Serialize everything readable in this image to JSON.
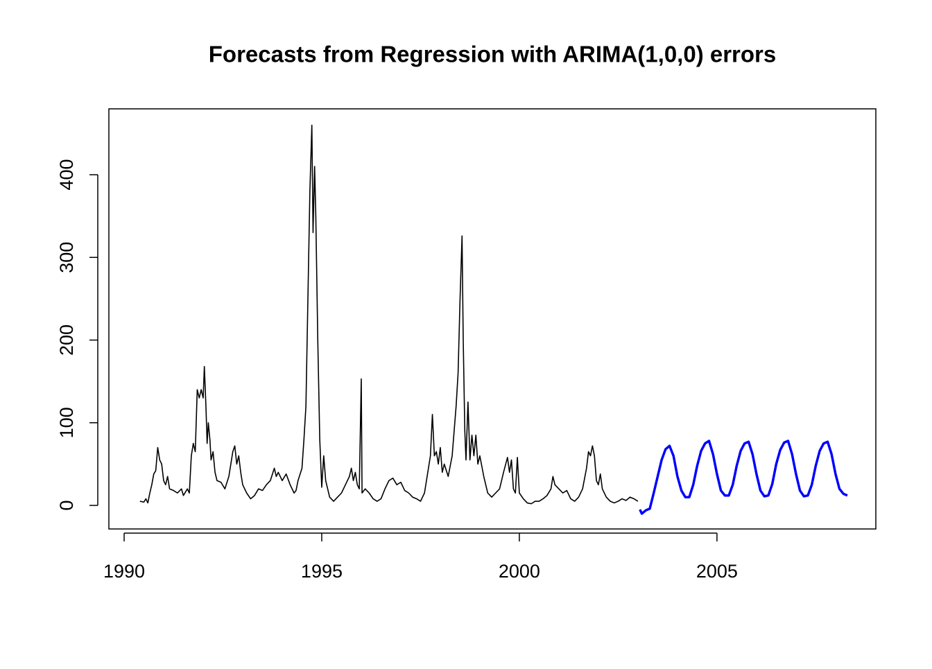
{
  "chart_data": {
    "type": "line",
    "title": "Forecasts from Regression with ARIMA(1,0,0) errors",
    "xlim": [
      1989.614,
      2009.02
    ],
    "xticks": [
      1990,
      1995,
      2000,
      2005
    ],
    "ylim": [
      -28.5,
      479.7
    ],
    "yticks": [
      0,
      100,
      200,
      300,
      400
    ],
    "series": [
      {
        "color": "#000000",
        "x": [
          1990.4,
          1990.5,
          1990.55,
          1990.6,
          1990.65,
          1990.7,
          1990.75,
          1990.8,
          1990.85,
          1990.9,
          1990.95,
          1991.0,
          1991.05,
          1991.1,
          1991.15,
          1991.25,
          1991.35,
          1991.45,
          1991.5,
          1991.6,
          1991.65,
          1991.7,
          1991.75,
          1991.8,
          1991.85,
          1991.9,
          1991.95,
          1992.0,
          1992.03,
          1992.07,
          1992.1,
          1992.13,
          1992.17,
          1992.2,
          1992.25,
          1992.3,
          1992.35,
          1992.45,
          1992.55,
          1992.65,
          1992.75,
          1992.8,
          1992.85,
          1992.9,
          1992.95,
          1993.0,
          1993.1,
          1993.2,
          1993.3,
          1993.4,
          1993.5,
          1993.6,
          1993.7,
          1993.8,
          1993.85,
          1993.9,
          1994.0,
          1994.1,
          1994.2,
          1994.3,
          1994.35,
          1994.4,
          1994.5,
          1994.55,
          1994.6,
          1994.65,
          1994.7,
          1994.75,
          1994.78,
          1994.82,
          1994.85,
          1994.9,
          1994.95,
          1995.0,
          1995.05,
          1995.1,
          1995.2,
          1995.3,
          1995.4,
          1995.5,
          1995.6,
          1995.7,
          1995.75,
          1995.8,
          1995.85,
          1995.9,
          1995.95,
          1996.0,
          1996.02,
          1996.1,
          1996.2,
          1996.3,
          1996.4,
          1996.5,
          1996.6,
          1996.7,
          1996.8,
          1996.9,
          1997.0,
          1997.1,
          1997.2,
          1997.3,
          1997.4,
          1997.5,
          1997.6,
          1997.7,
          1997.75,
          1997.8,
          1997.85,
          1997.9,
          1997.95,
          1998.0,
          1998.05,
          1998.1,
          1998.2,
          1998.3,
          1998.4,
          1998.45,
          1998.5,
          1998.55,
          1998.58,
          1998.62,
          1998.65,
          1998.7,
          1998.75,
          1998.8,
          1998.85,
          1998.9,
          1998.95,
          1999.0,
          1999.1,
          1999.2,
          1999.3,
          1999.4,
          1999.5,
          1999.6,
          1999.7,
          1999.75,
          1999.8,
          1999.85,
          1999.9,
          1999.95,
          2000.0,
          2000.1,
          2000.2,
          2000.3,
          2000.4,
          2000.5,
          2000.6,
          2000.7,
          2000.8,
          2000.85,
          2000.9,
          2001.0,
          2001.1,
          2001.2,
          2001.3,
          2001.4,
          2001.5,
          2001.6,
          2001.7,
          2001.75,
          2001.8,
          2001.85,
          2001.9,
          2001.95,
          2002.0,
          2002.05,
          2002.1,
          2002.2,
          2002.3,
          2002.4,
          2002.5,
          2002.6,
          2002.7,
          2002.8,
          2002.9,
          2003.0
        ],
        "values": [
          5,
          4,
          8,
          3,
          15,
          25,
          38,
          42,
          70,
          55,
          50,
          30,
          25,
          35,
          20,
          18,
          15,
          20,
          12,
          20,
          15,
          60,
          75,
          65,
          140,
          130,
          140,
          130,
          168,
          120,
          75,
          100,
          80,
          55,
          65,
          40,
          30,
          28,
          20,
          35,
          65,
          72,
          50,
          60,
          40,
          25,
          15,
          8,
          12,
          20,
          18,
          25,
          30,
          45,
          35,
          40,
          30,
          38,
          25,
          15,
          18,
          30,
          45,
          80,
          120,
          250,
          380,
          460,
          330,
          410,
          350,
          200,
          80,
          22,
          60,
          30,
          10,
          5,
          10,
          15,
          25,
          35,
          45,
          30,
          40,
          25,
          20,
          153,
          15,
          20,
          15,
          8,
          5,
          8,
          20,
          30,
          33,
          25,
          28,
          18,
          15,
          10,
          8,
          5,
          15,
          45,
          60,
          110,
          60,
          65,
          50,
          70,
          40,
          50,
          35,
          60,
          120,
          160,
          250,
          326,
          200,
          90,
          55,
          125,
          55,
          85,
          60,
          85,
          50,
          60,
          35,
          15,
          10,
          15,
          20,
          40,
          58,
          40,
          55,
          20,
          15,
          58,
          15,
          8,
          3,
          2,
          5,
          5,
          8,
          12,
          20,
          35,
          25,
          20,
          15,
          18,
          8,
          5,
          10,
          20,
          45,
          65,
          60,
          72,
          60,
          30,
          25,
          38,
          20,
          10,
          5,
          3,
          5,
          8,
          6,
          10,
          8,
          5
        ]
      },
      {
        "color": "#0000ff",
        "x": [
          2003.05,
          2003.1,
          2003.15,
          2003.2,
          2003.3,
          2003.4,
          2003.5,
          2003.6,
          2003.7,
          2003.8,
          2003.9,
          2004.0,
          2004.1,
          2004.2,
          2004.3,
          2004.4,
          2004.5,
          2004.6,
          2004.7,
          2004.8,
          2004.9,
          2005.0,
          2005.1,
          2005.2,
          2005.3,
          2005.4,
          2005.5,
          2005.6,
          2005.7,
          2005.8,
          2005.9,
          2006.0,
          2006.1,
          2006.2,
          2006.3,
          2006.4,
          2006.5,
          2006.6,
          2006.7,
          2006.8,
          2006.9,
          2007.0,
          2007.1,
          2007.2,
          2007.3,
          2007.4,
          2007.5,
          2007.6,
          2007.7,
          2007.8,
          2007.9,
          2008.0,
          2008.1,
          2008.2,
          2008.3
        ],
        "values": [
          -5,
          -10,
          -8,
          -6,
          -4,
          15,
          35,
          55,
          68,
          72,
          60,
          35,
          18,
          10,
          10,
          25,
          48,
          66,
          75,
          78,
          62,
          38,
          18,
          12,
          12,
          25,
          48,
          66,
          75,
          77,
          62,
          38,
          18,
          11,
          12,
          26,
          50,
          67,
          76,
          78,
          62,
          38,
          18,
          11,
          12,
          25,
          48,
          66,
          75,
          77,
          62,
          38,
          20,
          14,
          12
        ]
      }
    ]
  }
}
